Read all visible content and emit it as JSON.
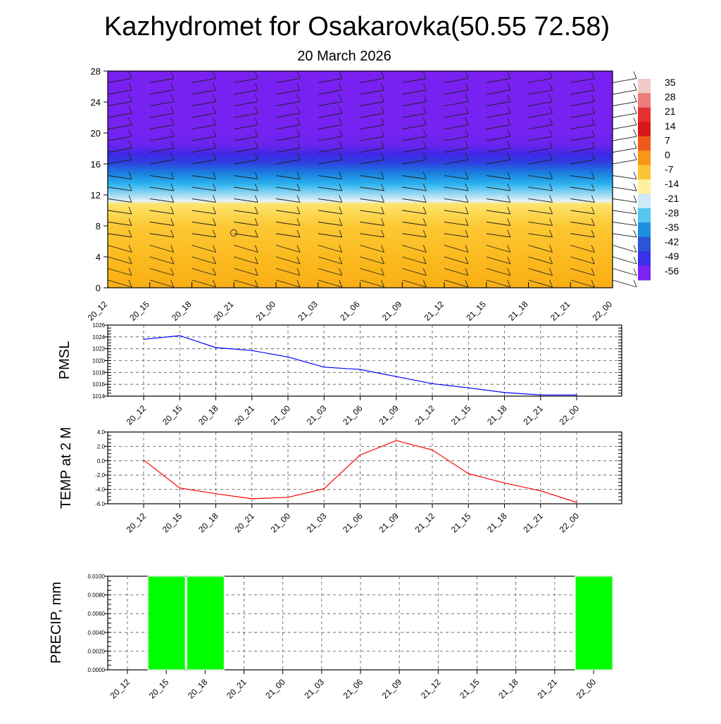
{
  "title": "Kazhydromet for Osakarovka(50.55 72.58)",
  "subtitle": "20 March 2026",
  "time_labels": [
    "20_12",
    "20_15",
    "20_18",
    "20_21",
    "21_00",
    "21_03",
    "21_06",
    "21_09",
    "21_12",
    "21_15",
    "21_18",
    "21_21",
    "22_00"
  ],
  "chart_data": [
    {
      "type": "heatmap",
      "name": "vertical-cross-section",
      "ylim": [
        0,
        28
      ],
      "y_ticks": [
        0,
        4,
        8,
        12,
        16,
        20,
        24,
        28
      ],
      "colorbar_labels": [
        "35",
        "28",
        "21",
        "14",
        "7",
        "0",
        "-7",
        "-14",
        "-21",
        "-28",
        "-35",
        "-42",
        "-49",
        "-56"
      ],
      "colorbar_colors": [
        "#f2c9c9",
        "#ee7c7c",
        "#e53030",
        "#d81818",
        "#ef5a1a",
        "#f8961a",
        "#fcc238",
        "#fff1a0",
        "#cfe9f5",
        "#55c6ef",
        "#1f8fe0",
        "#2b55d6",
        "#3a30e8",
        "#7d22f2"
      ],
      "levels": [
        {
          "y": 0,
          "color": "#f9ae14"
        },
        {
          "y": 4,
          "color": "#fbbb20"
        },
        {
          "y": 8,
          "color": "#fcc834"
        },
        {
          "y": 10.8,
          "color": "#fde46a"
        },
        {
          "y": 11.2,
          "color": "#e6f1f7"
        },
        {
          "y": 12.2,
          "color": "#8fd6f4"
        },
        {
          "y": 13.4,
          "color": "#2cb3ee"
        },
        {
          "y": 14.8,
          "color": "#1a7fe0"
        },
        {
          "y": 16.2,
          "color": "#2e3fe0"
        },
        {
          "y": 17.2,
          "color": "#3c2ae6"
        },
        {
          "y": 18.5,
          "color": "#6a24ee"
        },
        {
          "y": 20,
          "color": "#7622f0"
        },
        {
          "y": 28,
          "color": "#7a21f2"
        }
      ]
    },
    {
      "type": "line",
      "name": "pmsl",
      "ylabel": "PMSL",
      "ylim": [
        1014,
        1026
      ],
      "y_ticks": [
        1014,
        1016,
        1018,
        1020,
        1022,
        1024,
        1026
      ],
      "values": [
        1023.6,
        1024.2,
        1022.2,
        1021.7,
        1020.6,
        1018.9,
        1018.5,
        1017.3,
        1016.1,
        1015.4,
        1014.6,
        1014.2,
        1014.2
      ],
      "color": "#0000ff"
    },
    {
      "type": "line",
      "name": "temp",
      "ylabel": "TEMP at 2 M",
      "ylim": [
        -6,
        4
      ],
      "y_ticks": [
        "-6.0",
        "-4.0",
        "-2.0",
        "0.0",
        "2.0",
        "4.0"
      ],
      "values": [
        0.1,
        -3.8,
        -4.6,
        -5.3,
        -5.1,
        -3.9,
        0.8,
        2.8,
        1.5,
        -1.8,
        -3.1,
        -4.2,
        -5.8
      ],
      "color": "#ff0000"
    },
    {
      "type": "bar",
      "name": "precip",
      "ylabel": "PRECIP, mm",
      "ylim": [
        0,
        0.01
      ],
      "y_ticks": [
        "0.0000",
        "0.0020",
        "0.0040",
        "0.0060",
        "0.0080",
        "0.0100"
      ],
      "values": [
        0,
        0.01,
        0.01,
        0,
        0,
        0,
        0,
        0,
        0,
        0,
        0,
        0,
        0.01
      ],
      "color": "#00ff00"
    }
  ]
}
